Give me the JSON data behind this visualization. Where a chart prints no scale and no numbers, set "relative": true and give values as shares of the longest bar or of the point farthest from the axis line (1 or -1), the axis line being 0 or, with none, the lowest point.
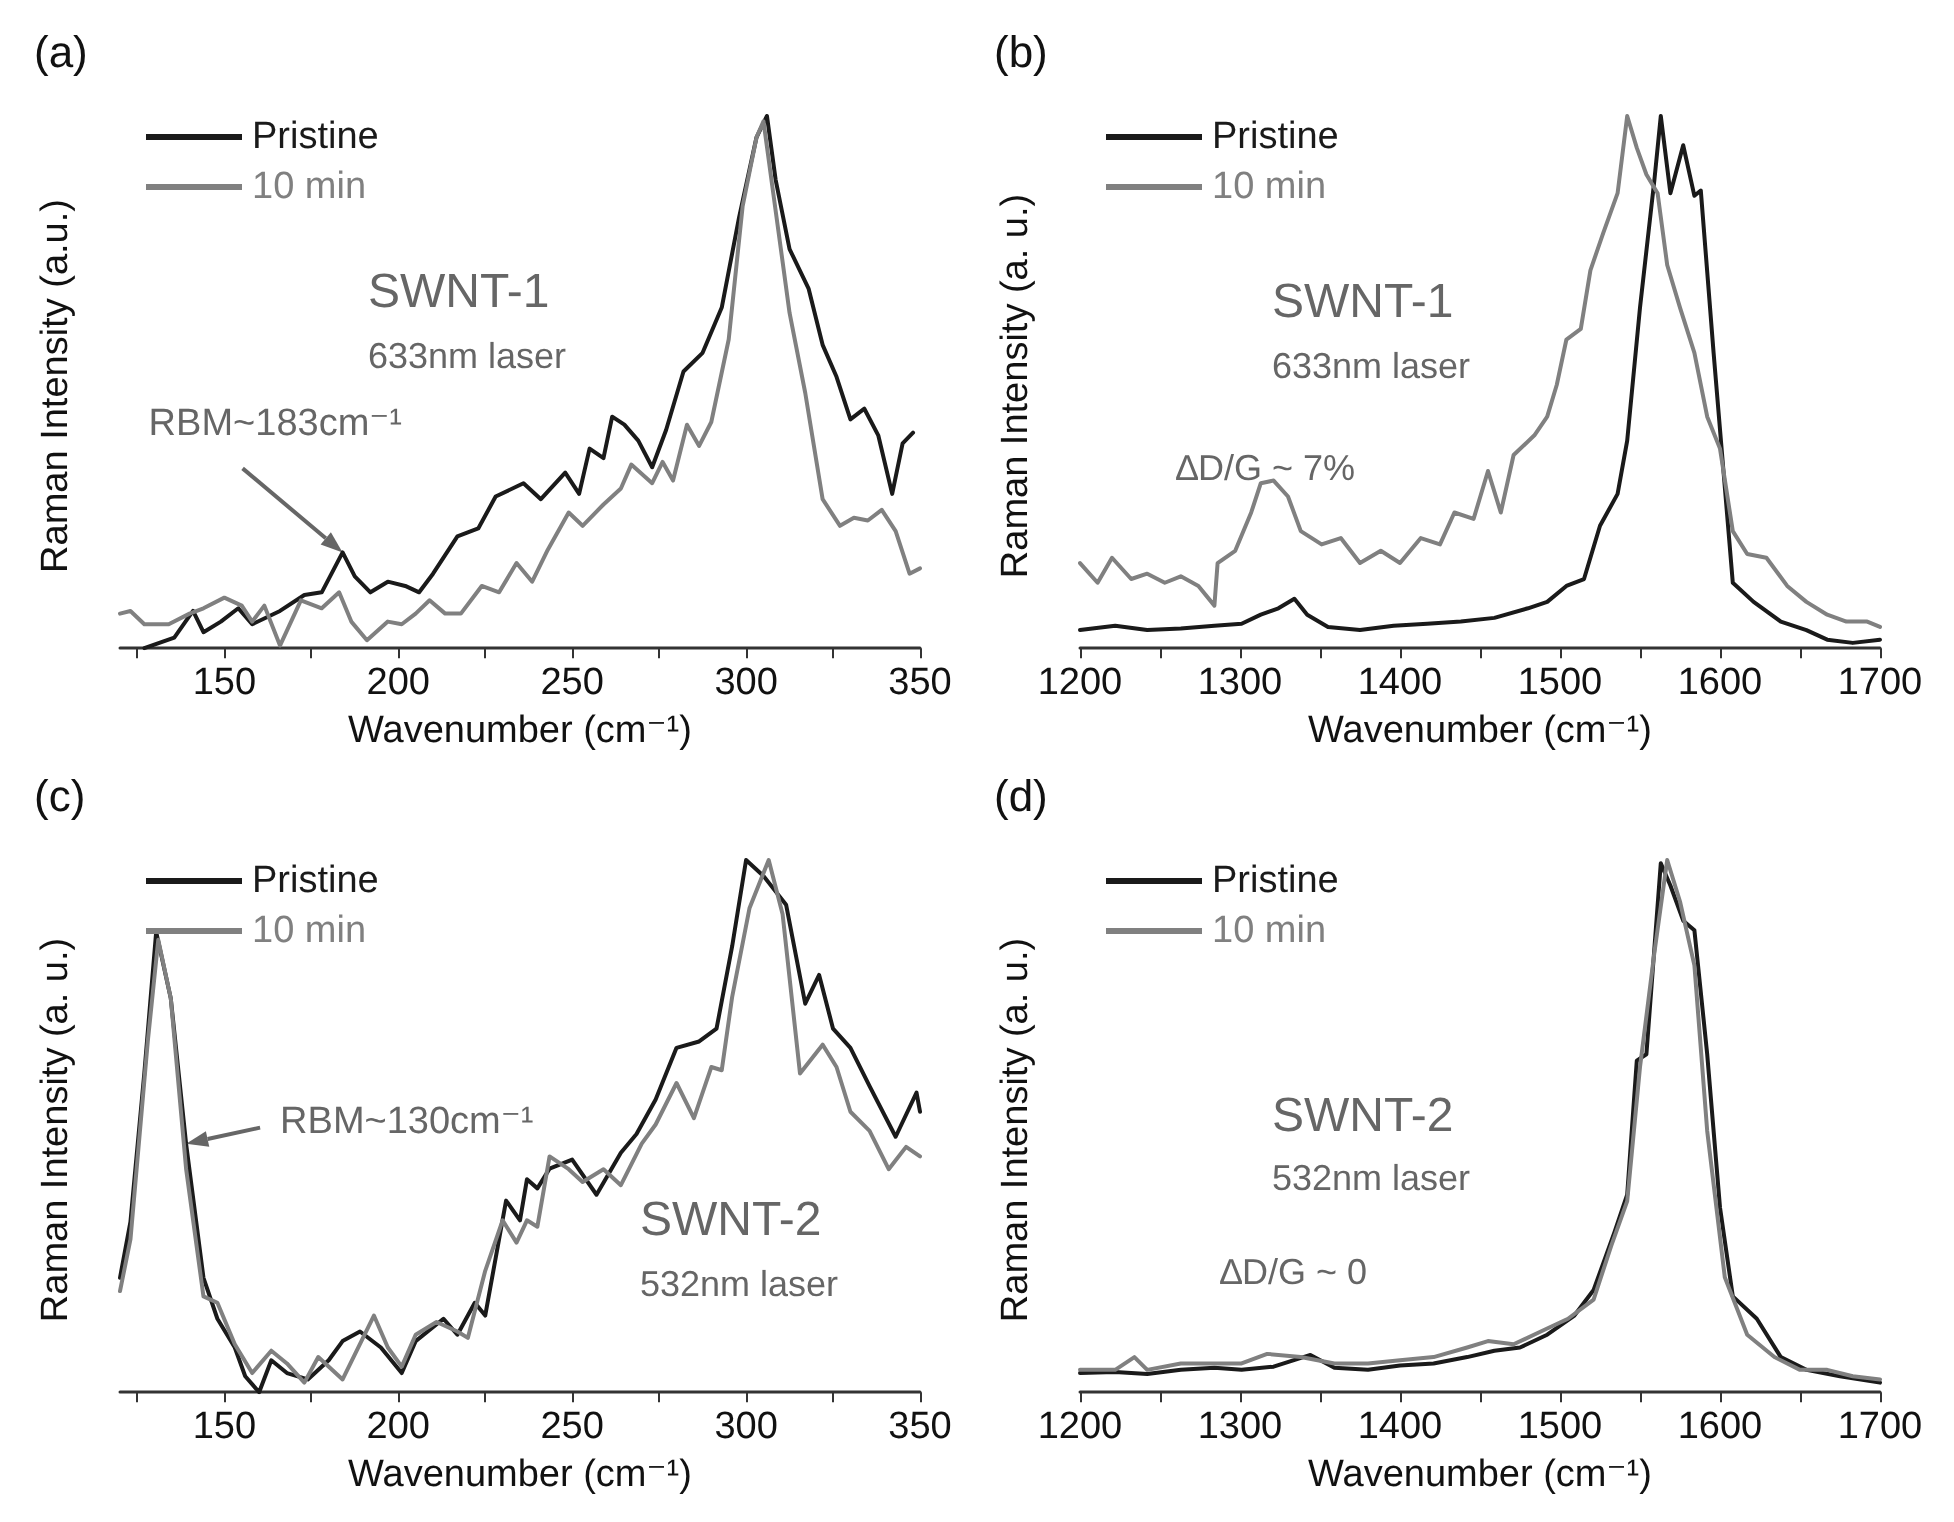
{
  "chart_data": [
    {
      "type": "line",
      "title": "(a)",
      "xlabel": "Wavenumber (cm⁻¹)",
      "ylabel": "Raman Intensity (a.u.)",
      "relative": true,
      "legend": "top left",
      "line_style": "solid",
      "xlim": [
        120,
        350
      ],
      "xticks": [
        {
          "value": 125,
          "label": null
        },
        150,
        {
          "value": 175,
          "label": null
        },
        200,
        {
          "value": 225,
          "label": null
        },
        250,
        {
          "value": 275,
          "label": null
        },
        300,
        {
          "value": 325,
          "label": null
        },
        350
      ],
      "annotations": [
        "SWNT-1",
        "633nm laser",
        {
          "text": "RBM~183cm⁻¹",
          "x": 184,
          "y": 0.18
        }
      ],
      "series": [
        {
          "name": "Pristine",
          "color": "#1a1a1a",
          "x": [
            127,
            135.6,
            141,
            144,
            149,
            154,
            158,
            166,
            173,
            178,
            184,
            187.5,
            192,
            197,
            202,
            206,
            210,
            217,
            223,
            228,
            236,
            241,
            248,
            252,
            255,
            259,
            261.5,
            265,
            269,
            273,
            277,
            282,
            287.5,
            293,
            298,
            303,
            306,
            308.5,
            312.5,
            318,
            322,
            326,
            330,
            334,
            338,
            342,
            345,
            348
          ],
          "values": [
            0.0,
            0.02,
            0.07,
            0.03,
            0.05,
            0.075,
            0.045,
            0.07,
            0.1,
            0.105,
            0.18,
            0.135,
            0.105,
            0.125,
            0.117,
            0.105,
            0.14,
            0.21,
            0.225,
            0.285,
            0.31,
            0.28,
            0.33,
            0.29,
            0.375,
            0.357,
            0.435,
            0.42,
            0.39,
            0.34,
            0.41,
            0.52,
            0.555,
            0.64,
            0.81,
            0.96,
            1.0,
            0.88,
            0.75,
            0.675,
            0.57,
            0.51,
            0.43,
            0.45,
            0.4,
            0.29,
            0.385,
            0.405
          ]
        },
        {
          "name": "10 min",
          "color": "#808080",
          "x": [
            120,
            123,
            127,
            134,
            140,
            144,
            150,
            155,
            158,
            161.5,
            166,
            172,
            178,
            183,
            186.5,
            191,
            197,
            201,
            205,
            209,
            213.5,
            218,
            224,
            229,
            234,
            238.5,
            243,
            249,
            253,
            259,
            264,
            267,
            273,
            276,
            279,
            283,
            286.5,
            290,
            295,
            299,
            303,
            305,
            307.5,
            312.5,
            317,
            322,
            327,
            331,
            335,
            339,
            343,
            347,
            350
          ],
          "values": [
            0.065,
            0.07,
            0.045,
            0.045,
            0.065,
            0.075,
            0.095,
            0.08,
            0.05,
            0.08,
            0.005,
            0.09,
            0.075,
            0.105,
            0.05,
            0.015,
            0.05,
            0.045,
            0.065,
            0.09,
            0.065,
            0.065,
            0.117,
            0.105,
            0.16,
            0.125,
            0.185,
            0.255,
            0.23,
            0.27,
            0.3,
            0.345,
            0.31,
            0.35,
            0.315,
            0.42,
            0.38,
            0.425,
            0.58,
            0.83,
            0.96,
            0.99,
            0.87,
            0.63,
            0.48,
            0.28,
            0.23,
            0.245,
            0.24,
            0.26,
            0.22,
            0.14,
            0.15
          ]
        }
      ]
    },
    {
      "type": "line",
      "title": "(b)",
      "xlabel": "Wavenumber (cm⁻¹)",
      "ylabel": "Raman Intensity (a. u.)",
      "relative": true,
      "legend": "top left",
      "line_style": "solid",
      "xlim": [
        1200,
        1700
      ],
      "xticks": [
        1200,
        {
          "value": 1250,
          "label": null
        },
        1300,
        {
          "value": 1350,
          "label": null
        },
        1400,
        {
          "value": 1450,
          "label": null
        },
        1500,
        {
          "value": 1550,
          "label": null
        },
        1600,
        {
          "value": 1650,
          "label": null
        },
        1700
      ],
      "annotations": [
        "SWNT-1",
        "633nm laser",
        "∆D/G ~ 7%"
      ],
      "series": [
        {
          "name": "Pristine",
          "color": "#1a1a1a",
          "x": [
            1200,
            1222,
            1242,
            1263,
            1284,
            1301,
            1313,
            1324,
            1334,
            1342,
            1355,
            1375,
            1396,
            1417,
            1438,
            1459,
            1480,
            1492,
            1504,
            1515,
            1525,
            1536,
            1542,
            1550,
            1559,
            1563,
            1569,
            1577,
            1584,
            1588,
            1596,
            1608,
            1621,
            1638,
            1654,
            1667,
            1683,
            1700
          ],
          "values": [
            0.034,
            0.042,
            0.034,
            0.037,
            0.042,
            0.046,
            0.063,
            0.075,
            0.093,
            0.063,
            0.04,
            0.034,
            0.042,
            0.046,
            0.05,
            0.057,
            0.075,
            0.087,
            0.117,
            0.13,
            0.23,
            0.29,
            0.39,
            0.64,
            0.88,
            1.0,
            0.855,
            0.945,
            0.85,
            0.86,
            0.555,
            0.123,
            0.087,
            0.05,
            0.034,
            0.016,
            0.01,
            0.016
          ]
        },
        {
          "name": "10 min",
          "color": "#808080",
          "x": [
            1200,
            1211,
            1220,
            1232,
            1242,
            1253,
            1263,
            1274,
            1284,
            1286,
            1297,
            1307,
            1313,
            1321,
            1330,
            1338,
            1351,
            1363,
            1375,
            1388,
            1400,
            1413,
            1425,
            1434,
            1446,
            1455,
            1463,
            1471,
            1484,
            1492,
            1498,
            1504,
            1513,
            1519,
            1527,
            1536,
            1542,
            1548,
            1554,
            1561,
            1567,
            1575,
            1584,
            1592,
            1600,
            1608,
            1617,
            1629,
            1642,
            1654,
            1667,
            1679,
            1692,
            1700
          ],
          "values": [
            0.16,
            0.123,
            0.17,
            0.13,
            0.14,
            0.123,
            0.135,
            0.117,
            0.08,
            0.16,
            0.183,
            0.255,
            0.31,
            0.315,
            0.285,
            0.22,
            0.195,
            0.207,
            0.16,
            0.183,
            0.16,
            0.207,
            0.195,
            0.255,
            0.243,
            0.333,
            0.255,
            0.363,
            0.4,
            0.435,
            0.495,
            0.58,
            0.6,
            0.71,
            0.78,
            0.855,
            1.0,
            0.94,
            0.89,
            0.855,
            0.72,
            0.64,
            0.555,
            0.435,
            0.375,
            0.22,
            0.177,
            0.17,
            0.117,
            0.087,
            0.063,
            0.05,
            0.05,
            0.04
          ]
        }
      ]
    },
    {
      "type": "line",
      "title": "(c)",
      "xlabel": "Wavenumber (cm⁻¹)",
      "ylabel": "Raman Intensity (a. u.)",
      "relative": true,
      "legend": "top left",
      "line_style": "solid",
      "xlim": [
        120,
        350
      ],
      "xticks": [
        {
          "value": 125,
          "label": null
        },
        150,
        {
          "value": 175,
          "label": null
        },
        200,
        {
          "value": 225,
          "label": null
        },
        250,
        {
          "value": 275,
          "label": null
        },
        300,
        {
          "value": 325,
          "label": null
        },
        350
      ],
      "annotations": [
        {
          "text": "RBM~130cm⁻¹",
          "x": 139,
          "y": 0.467
        },
        "SWNT-2",
        "532nm laser"
      ],
      "series": [
        {
          "name": "Pristine",
          "color": "#1a1a1a",
          "x": [
            120,
            123,
            127,
            130.4,
            134.6,
            139,
            144,
            148,
            153,
            156,
            160,
            163.5,
            168,
            174,
            180,
            184,
            189,
            195,
            201,
            205,
            213,
            217,
            222,
            225,
            231,
            235,
            237,
            240,
            243.5,
            250,
            257,
            264,
            268.5,
            274,
            280,
            286.5,
            291.5,
            296,
            300,
            305,
            311.5,
            317,
            321,
            325,
            330,
            335.5,
            343,
            349,
            350
          ],
          "values": [
            0.215,
            0.32,
            0.6,
            0.865,
            0.74,
            0.467,
            0.215,
            0.138,
            0.084,
            0.03,
            0.0,
            0.06,
            0.036,
            0.024,
            0.06,
            0.096,
            0.114,
            0.084,
            0.036,
            0.096,
            0.138,
            0.108,
            0.168,
            0.144,
            0.36,
            0.323,
            0.4,
            0.383,
            0.42,
            0.437,
            0.371,
            0.45,
            0.485,
            0.55,
            0.647,
            0.659,
            0.683,
            0.838,
            1.0,
            0.97,
            0.916,
            0.73,
            0.784,
            0.683,
            0.647,
            0.575,
            0.48,
            0.563,
            0.527
          ]
        },
        {
          "name": "10 min",
          "color": "#808080",
          "x": [
            120,
            123,
            128,
            131,
            134.6,
            139,
            144,
            148,
            153,
            158,
            163.5,
            168,
            173,
            177,
            184,
            193,
            197,
            201,
            205,
            211,
            217,
            220,
            225,
            230,
            234,
            237,
            240,
            243.5,
            249,
            253,
            259,
            264,
            270,
            274,
            280,
            285,
            290,
            293,
            296,
            301,
            306.5,
            310.5,
            315.5,
            322,
            326,
            330,
            335.5,
            341,
            346,
            350
          ],
          "values": [
            0.19,
            0.287,
            0.66,
            0.85,
            0.74,
            0.42,
            0.18,
            0.168,
            0.09,
            0.036,
            0.078,
            0.054,
            0.018,
            0.066,
            0.024,
            0.144,
            0.084,
            0.048,
            0.108,
            0.132,
            0.114,
            0.102,
            0.228,
            0.323,
            0.281,
            0.323,
            0.311,
            0.443,
            0.419,
            0.395,
            0.419,
            0.389,
            0.467,
            0.503,
            0.581,
            0.515,
            0.611,
            0.605,
            0.743,
            0.91,
            1.0,
            0.898,
            0.599,
            0.653,
            0.611,
            0.527,
            0.491,
            0.419,
            0.461,
            0.443
          ]
        }
      ]
    },
    {
      "type": "line",
      "title": "(d)",
      "xlabel": "Wavenumber (cm⁻¹)",
      "ylabel": "Raman Intensity (a. u.)",
      "relative": true,
      "legend": "top left",
      "line_style": "solid",
      "xlim": [
        1200,
        1700
      ],
      "xticks": [
        1200,
        {
          "value": 1250,
          "label": null
        },
        1300,
        {
          "value": 1350,
          "label": null
        },
        1400,
        {
          "value": 1450,
          "label": null
        },
        1500,
        {
          "value": 1550,
          "label": null
        },
        1600,
        {
          "value": 1650,
          "label": null
        },
        1700
      ],
      "annotations": [
        "SWNT-2",
        "532nm laser",
        "∆D/G ~ 0"
      ],
      "series": [
        {
          "name": "Pristine",
          "color": "#1a1a1a",
          "x": [
            1200,
            1222,
            1242,
            1263,
            1284,
            1301,
            1321,
            1344,
            1359,
            1380,
            1400,
            1421,
            1442,
            1459,
            1475,
            1492,
            1509,
            1521,
            1534,
            1542,
            1548,
            1554,
            1563,
            1569,
            1577,
            1584,
            1592,
            1600,
            1608,
            1623,
            1638,
            1654,
            1675,
            1700
          ],
          "values": [
            0.036,
            0.038,
            0.034,
            0.042,
            0.046,
            0.042,
            0.048,
            0.07,
            0.046,
            0.042,
            0.05,
            0.054,
            0.066,
            0.078,
            0.084,
            0.108,
            0.144,
            0.192,
            0.3,
            0.371,
            0.623,
            0.635,
            0.994,
            0.952,
            0.886,
            0.868,
            0.635,
            0.347,
            0.18,
            0.138,
            0.066,
            0.042,
            0.03,
            0.018
          ]
        },
        {
          "name": "10 min",
          "color": "#808080",
          "x": [
            1200,
            1222,
            1234,
            1242,
            1263,
            1284,
            1301,
            1317,
            1338,
            1359,
            1380,
            1400,
            1421,
            1442,
            1455,
            1471,
            1488,
            1505,
            1521,
            1532,
            1542,
            1550,
            1559,
            1567,
            1575,
            1584,
            1592,
            1603,
            1617,
            1634,
            1650,
            1667,
            1683,
            1700
          ],
          "values": [
            0.042,
            0.042,
            0.066,
            0.042,
            0.054,
            0.054,
            0.054,
            0.072,
            0.066,
            0.054,
            0.054,
            0.06,
            0.066,
            0.084,
            0.096,
            0.09,
            0.114,
            0.138,
            0.174,
            0.275,
            0.359,
            0.611,
            0.826,
            1.0,
            0.922,
            0.802,
            0.491,
            0.216,
            0.108,
            0.066,
            0.042,
            0.042,
            0.03,
            0.024
          ]
        }
      ]
    }
  ]
}
